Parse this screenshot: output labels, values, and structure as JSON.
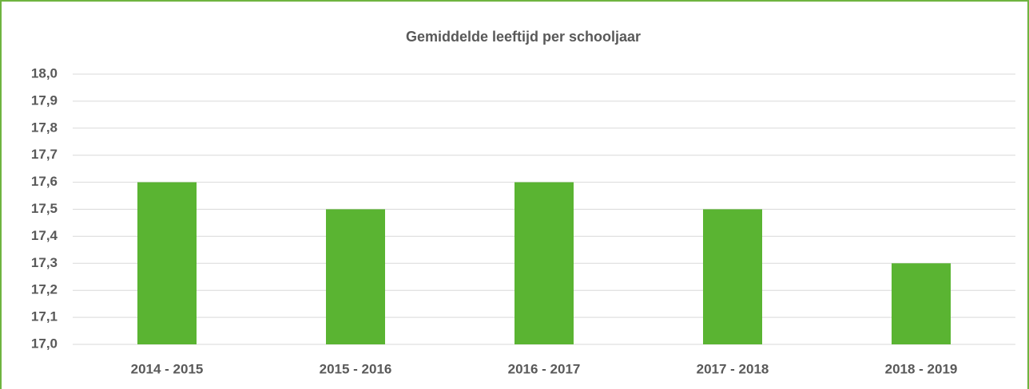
{
  "chart_data": {
    "type": "bar",
    "title": "Gemiddelde leeftijd per schooljaar",
    "categories": [
      "2014 - 2015",
      "2015 - 2016",
      "2016 - 2017",
      "2017 - 2018",
      "2018 - 2019"
    ],
    "values": [
      17.6,
      17.5,
      17.6,
      17.5,
      17.3
    ],
    "color": "#5ab432",
    "ylim": [
      17,
      18
    ],
    "yticks": [
      {
        "value": 17,
        "label": "17,0"
      },
      {
        "value": 17.1,
        "label": "17,1"
      },
      {
        "value": 17.2,
        "label": "17,2"
      },
      {
        "value": 17.3,
        "label": "17,3"
      },
      {
        "value": 17.4,
        "label": "17,4"
      },
      {
        "value": 17.5,
        "label": "17,5"
      },
      {
        "value": 17.6,
        "label": "17,6"
      },
      {
        "value": 17.7,
        "label": "17,7"
      },
      {
        "value": 17.8,
        "label": "17,8"
      },
      {
        "value": 17.9,
        "label": "17,9"
      },
      {
        "value": 18,
        "label": "18,0"
      }
    ],
    "grid": true
  }
}
